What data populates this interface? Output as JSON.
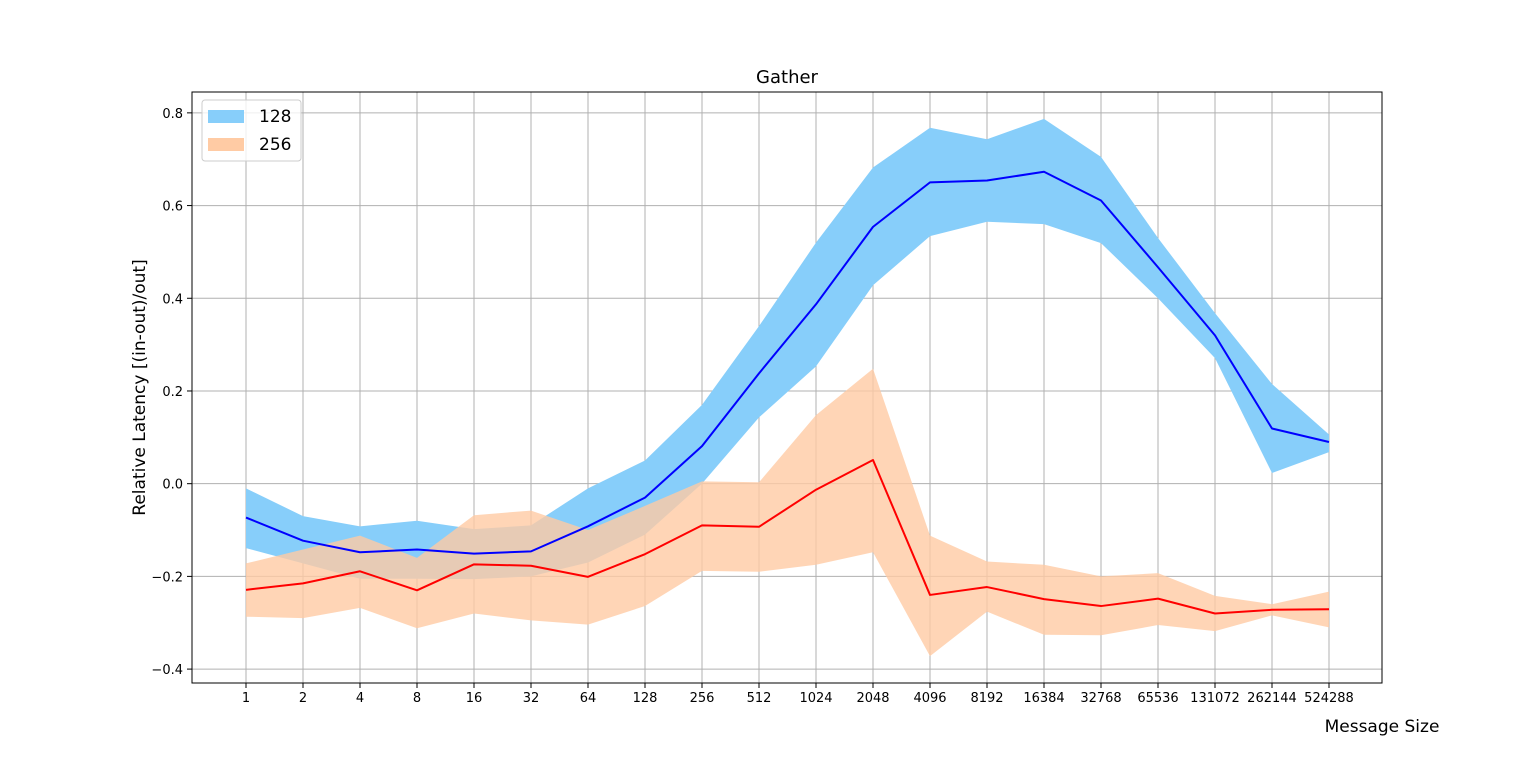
{
  "chart_data": {
    "type": "line",
    "title": "Gather",
    "xlabel": "Message Size",
    "ylabel": "Relative Latency [(in-out)/out]",
    "categories": [
      "1",
      "2",
      "4",
      "8",
      "16",
      "32",
      "64",
      "128",
      "256",
      "512",
      "1024",
      "2048",
      "4096",
      "8192",
      "16384",
      "32768",
      "65536",
      "131072",
      "262144",
      "524288"
    ],
    "ylim": [
      -0.43,
      0.845
    ],
    "yticks": [
      -0.4,
      -0.2,
      0.0,
      0.2,
      0.4,
      0.6,
      0.8
    ],
    "ytick_labels": [
      "−0.4",
      "−0.2",
      "0.0",
      "0.2",
      "0.4",
      "0.6",
      "0.8"
    ],
    "grid": true,
    "legend_position": "top-left",
    "series": [
      {
        "name": "128",
        "line_color": "#0000ff",
        "band_color": "#87cefa",
        "mean": [
          -0.073,
          -0.123,
          -0.148,
          -0.142,
          -0.151,
          -0.146,
          -0.092,
          -0.03,
          0.081,
          0.238,
          0.387,
          0.554,
          0.65,
          0.654,
          0.673,
          0.611,
          0.467,
          0.32,
          0.119,
          0.09
        ],
        "upper": [
          -0.01,
          -0.07,
          -0.092,
          -0.08,
          -0.098,
          -0.09,
          -0.01,
          0.05,
          0.17,
          0.34,
          0.52,
          0.682,
          0.768,
          0.743,
          0.787,
          0.705,
          0.53,
          0.368,
          0.215,
          0.106
        ],
        "lower": [
          -0.139,
          -0.172,
          -0.205,
          -0.205,
          -0.206,
          -0.2,
          -0.17,
          -0.11,
          0.0,
          0.143,
          0.253,
          0.428,
          0.534,
          0.565,
          0.56,
          0.519,
          0.4,
          0.271,
          0.023,
          0.068
        ]
      },
      {
        "name": "256",
        "line_color": "#ff0000",
        "band_color": "#ffcba4",
        "mean": [
          -0.229,
          -0.215,
          -0.189,
          -0.23,
          -0.174,
          -0.177,
          -0.201,
          -0.152,
          -0.09,
          -0.093,
          -0.013,
          0.051,
          -0.24,
          -0.223,
          -0.249,
          -0.264,
          -0.248,
          -0.28,
          -0.272,
          -0.271
        ],
        "upper": [
          -0.172,
          -0.142,
          -0.112,
          -0.16,
          -0.068,
          -0.058,
          -0.1,
          -0.048,
          0.005,
          0.003,
          0.148,
          0.248,
          -0.112,
          -0.168,
          -0.175,
          -0.2,
          -0.193,
          -0.242,
          -0.26,
          -0.233
        ],
        "lower": [
          -0.287,
          -0.29,
          -0.268,
          -0.312,
          -0.28,
          -0.295,
          -0.304,
          -0.264,
          -0.188,
          -0.19,
          -0.175,
          -0.148,
          -0.372,
          -0.276,
          -0.326,
          -0.327,
          -0.305,
          -0.318,
          -0.284,
          -0.31
        ]
      }
    ]
  }
}
